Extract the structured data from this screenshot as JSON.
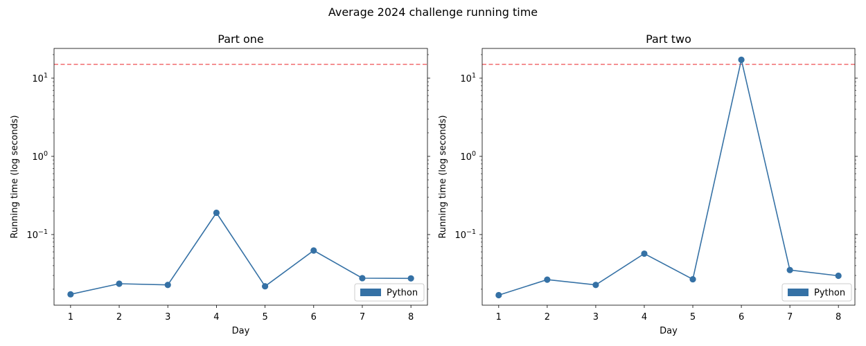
{
  "suptitle": "Average 2024 challenge running time",
  "colors": {
    "series": "#3571a5",
    "threshold": "#f2777a"
  },
  "chart_data": [
    {
      "type": "line",
      "title": "Part one",
      "xlabel": "Day",
      "ylabel": "Running time (log seconds)",
      "yscale": "log",
      "ylim": [
        0.0125,
        24
      ],
      "yticks": [
        {
          "value": 0.1,
          "base": "10",
          "exp": "−1"
        },
        {
          "value": 1,
          "base": "10",
          "exp": "0"
        },
        {
          "value": 10,
          "base": "10",
          "exp": "1"
        }
      ],
      "x": [
        1,
        2,
        3,
        4,
        5,
        6,
        7,
        8
      ],
      "xlim": [
        0.66,
        8.34
      ],
      "threshold": 15,
      "legend": {
        "label": "Python",
        "position": "lower-right"
      },
      "series": [
        {
          "name": "Python",
          "values": [
            0.0172,
            0.0235,
            0.0227,
            0.19,
            0.0218,
            0.0625,
            0.0277,
            0.0275
          ]
        }
      ]
    },
    {
      "type": "line",
      "title": "Part two",
      "xlabel": "Day",
      "ylabel": "Running time (log seconds)",
      "yscale": "log",
      "ylim": [
        0.0125,
        24
      ],
      "yticks": [
        {
          "value": 0.1,
          "base": "10",
          "exp": "−1"
        },
        {
          "value": 1,
          "base": "10",
          "exp": "0"
        },
        {
          "value": 10,
          "base": "10",
          "exp": "1"
        }
      ],
      "x": [
        1,
        2,
        3,
        4,
        5,
        6,
        7,
        8
      ],
      "xlim": [
        0.66,
        8.34
      ],
      "threshold": 15,
      "legend": {
        "label": "Python",
        "position": "lower-right"
      },
      "series": [
        {
          "name": "Python",
          "values": [
            0.0168,
            0.0265,
            0.0227,
            0.057,
            0.0268,
            17.2,
            0.0352,
            0.0297
          ]
        }
      ]
    }
  ]
}
